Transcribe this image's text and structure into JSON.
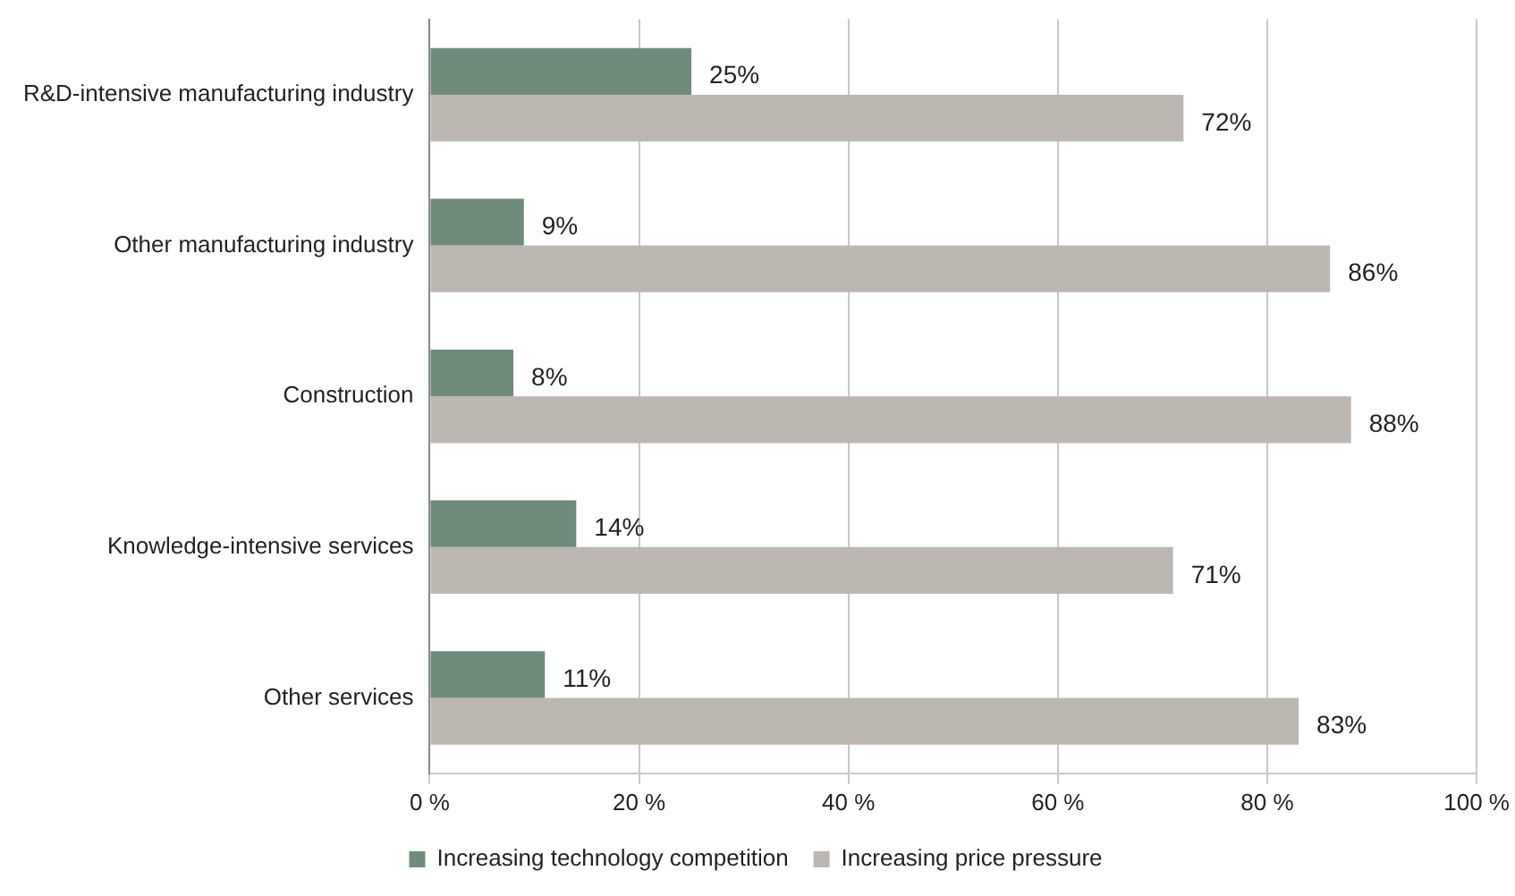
{
  "chart_data": {
    "type": "bar",
    "orientation": "horizontal",
    "categories": [
      "R&D-intensive manufacturing industry",
      "Other manufacturing industry",
      "Construction",
      "Knowledge-intensive services",
      "Other services"
    ],
    "series": [
      {
        "name": "Increasing technology competition",
        "color": "#6f8c7b",
        "values": [
          25,
          9,
          8,
          14,
          11
        ],
        "value_labels": [
          "25%",
          "9%",
          "8%",
          "14%",
          "11%"
        ]
      },
      {
        "name": "Increasing price pressure",
        "color": "#bdb7b1",
        "values": [
          72,
          86,
          88,
          71,
          83
        ],
        "value_labels": [
          "72%",
          "86%",
          "88%",
          "71%",
          "83%"
        ]
      }
    ],
    "xlim": [
      0,
      100
    ],
    "xticks": [
      {
        "value": 0,
        "label": "0 %"
      },
      {
        "value": 20,
        "label": "20 %"
      },
      {
        "value": 40,
        "label": "40 %"
      },
      {
        "value": 60,
        "label": "60 %"
      },
      {
        "value": 80,
        "label": "80 %"
      },
      {
        "value": 100,
        "label": "100 %"
      }
    ],
    "grid": "x",
    "legend": "bottom"
  }
}
